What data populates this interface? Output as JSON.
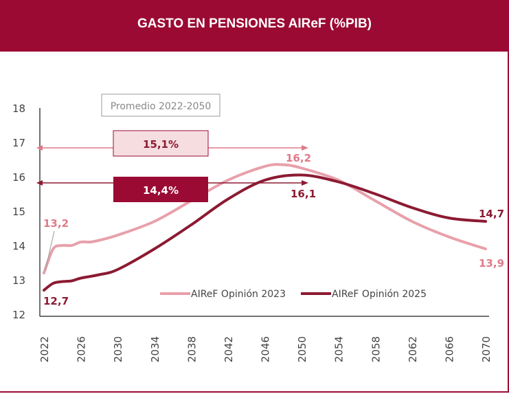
{
  "chart_data": {
    "type": "line",
    "title": "GASTO EN PENSIONES AIReF (%PIB)",
    "xlabel": "",
    "ylabel": "",
    "ylim": [
      12,
      18
    ],
    "yticks": [
      "18",
      "17",
      "16",
      "15",
      "14",
      "13",
      "12"
    ],
    "xticks": [
      "2022",
      "2026",
      "2030",
      "2034",
      "2038",
      "2042",
      "2046",
      "2050",
      "2054",
      "2058",
      "2062",
      "2066",
      "2070"
    ],
    "grid": false,
    "legend": "bottom-right",
    "series": [
      {
        "name": "AIReF Opinión 2023",
        "color": "#e8a0aa",
        "x": [
          2022,
          2023,
          2024,
          2025,
          2026,
          2027,
          2028,
          2030,
          2034,
          2038,
          2042,
          2046,
          2048,
          2050,
          2054,
          2058,
          2062,
          2066,
          2070
        ],
        "values": [
          13.2,
          13.9,
          14.0,
          14.0,
          14.1,
          14.1,
          14.15,
          14.3,
          14.7,
          15.3,
          15.9,
          16.3,
          16.35,
          16.25,
          15.9,
          15.3,
          14.7,
          14.25,
          13.9
        ]
      },
      {
        "name": "AIReF Opinión 2025",
        "color": "#8c1a32",
        "x": [
          2022,
          2023,
          2024,
          2025,
          2026,
          2028,
          2030,
          2034,
          2038,
          2042,
          2046,
          2050,
          2054,
          2058,
          2062,
          2066,
          2070
        ],
        "values": [
          12.7,
          12.9,
          12.95,
          12.97,
          13.05,
          13.15,
          13.3,
          13.9,
          14.6,
          15.35,
          15.9,
          16.05,
          15.85,
          15.5,
          15.1,
          14.8,
          14.7
        ]
      }
    ],
    "annotations": {
      "box_title": "Promedio 2022-2050",
      "avg_2023": "15,1%",
      "avg_2025": "14,4%",
      "start_2023": "13,2",
      "start_2025": "12,7",
      "y2050_2023": "16,2",
      "y2050_2025": "16,1",
      "end_2023": "13,9",
      "end_2025": "14,7"
    }
  }
}
